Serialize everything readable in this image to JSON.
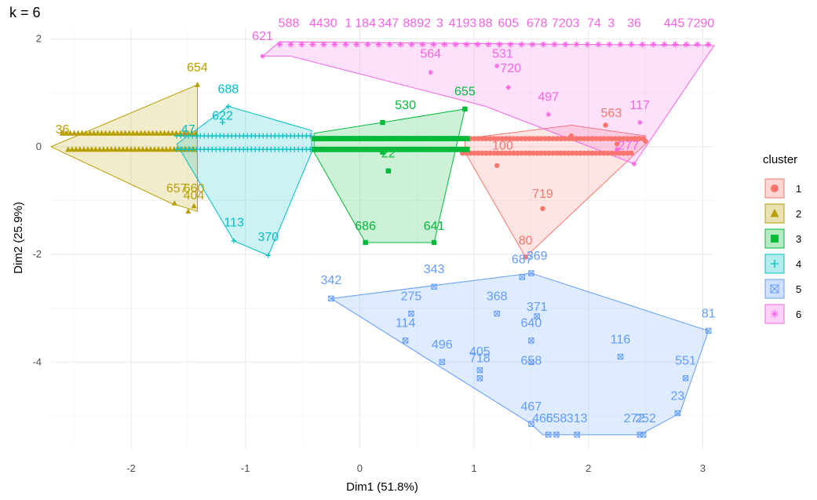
{
  "chart_data": {
    "type": "scatter",
    "title": "k = 6",
    "xlabel": "Dim1 (51.8%)",
    "ylabel": "Dim2 (25.9%)",
    "xlim": [
      -2.7,
      3.1
    ],
    "ylim": [
      -5.6,
      2.2
    ],
    "x_ticks": [
      -2,
      -1,
      0,
      1,
      2,
      3
    ],
    "y_ticks": [
      2,
      0,
      -2,
      -4
    ],
    "grid": true,
    "legend": {
      "title": "cluster",
      "position": "right"
    },
    "clusters": [
      {
        "name": "1",
        "color": "#f8766d",
        "shape": "circle",
        "hull": [
          [
            0.92,
            -0.1
          ],
          [
            1.45,
            -2.05
          ],
          [
            2.5,
            0.05
          ],
          [
            2.5,
            0.2
          ],
          [
            1.85,
            0.4
          ],
          [
            0.92,
            0.15
          ]
        ],
        "bands": [
          {
            "y": 0.15,
            "x0": 0.9,
            "x1": 2.5
          },
          {
            "y": -0.12,
            "x0": 0.9,
            "x1": 2.4
          }
        ],
        "points": [
          [
            1.2,
            -0.35
          ],
          [
            1.6,
            -1.15
          ],
          [
            1.45,
            -2.05
          ],
          [
            2.15,
            0.4
          ],
          [
            2.5,
            0.1
          ],
          [
            2.25,
            0.05
          ],
          [
            1.85,
            0.2
          ]
        ],
        "labels": [
          {
            "text": "563",
            "x": 2.2,
            "y": 0.55
          },
          {
            "text": "719",
            "x": 1.6,
            "y": -0.95
          },
          {
            "text": "80",
            "x": 1.45,
            "y": -1.82
          },
          {
            "text": "100",
            "x": 1.25,
            "y": -0.05
          }
        ]
      },
      {
        "name": "2",
        "color": "#b79f00",
        "shape": "triangle",
        "hull": [
          [
            -2.7,
            0.0
          ],
          [
            -1.42,
            1.15
          ],
          [
            -1.42,
            -1.2
          ],
          [
            -1.65,
            -1.05
          ]
        ],
        "bands": [
          {
            "y": 0.25,
            "x0": -2.6,
            "x1": -1.4
          },
          {
            "y": -0.05,
            "x0": -2.55,
            "x1": -1.42
          }
        ],
        "points": [
          [
            -1.42,
            1.15
          ],
          [
            -1.62,
            -1.05
          ],
          [
            -1.5,
            -1.2
          ],
          [
            -1.45,
            -1.1
          ]
        ],
        "labels": [
          {
            "text": "654",
            "x": -1.42,
            "y": 1.4
          },
          {
            "text": "657",
            "x": -1.6,
            "y": -0.85
          },
          {
            "text": "660",
            "x": -1.45,
            "y": -0.85
          },
          {
            "text": "404",
            "x": -1.45,
            "y": -0.98
          },
          {
            "text": "36",
            "x": -2.6,
            "y": 0.25
          }
        ]
      },
      {
        "name": "3",
        "color": "#00ba38",
        "shape": "square",
        "hull": [
          [
            -0.4,
            -0.1
          ],
          [
            0.05,
            -1.78
          ],
          [
            0.65,
            -1.78
          ],
          [
            0.92,
            0.7
          ],
          [
            0.2,
            0.45
          ],
          [
            -0.4,
            0.25
          ]
        ],
        "bands": [
          {
            "y": 0.15,
            "x0": -0.4,
            "x1": 0.95
          },
          {
            "y": -0.05,
            "x0": -0.4,
            "x1": 0.95
          }
        ],
        "points": [
          [
            0.2,
            0.45
          ],
          [
            0.92,
            0.7
          ],
          [
            0.05,
            -1.78
          ],
          [
            0.65,
            -1.78
          ],
          [
            0.25,
            -0.45
          ],
          [
            0.2,
            -0.1
          ]
        ],
        "labels": [
          {
            "text": "530",
            "x": 0.4,
            "y": 0.7
          },
          {
            "text": "655",
            "x": 0.92,
            "y": 0.95
          },
          {
            "text": "686",
            "x": 0.05,
            "y": -1.55
          },
          {
            "text": "641",
            "x": 0.65,
            "y": -1.55
          },
          {
            "text": "22",
            "x": 0.25,
            "y": -0.2
          }
        ]
      },
      {
        "name": "4",
        "color": "#00bfc4",
        "shape": "cross",
        "hull": [
          [
            -1.6,
            0.05
          ],
          [
            -1.15,
            0.75
          ],
          [
            -0.42,
            0.3
          ],
          [
            -0.42,
            -0.1
          ],
          [
            -0.8,
            -2.02
          ],
          [
            -1.1,
            -1.75
          ]
        ],
        "bands": [
          {
            "y": 0.2,
            "x0": -1.6,
            "x1": -0.42
          },
          {
            "y": -0.05,
            "x0": -1.6,
            "x1": -0.42
          }
        ],
        "points": [
          [
            -1.15,
            0.75
          ],
          [
            -1.1,
            -1.75
          ],
          [
            -0.8,
            -2.02
          ],
          [
            -1.2,
            0.45
          ]
        ],
        "labels": [
          {
            "text": "688",
            "x": -1.15,
            "y": 1.0
          },
          {
            "text": "622",
            "x": -1.2,
            "y": 0.5
          },
          {
            "text": "113",
            "x": -1.1,
            "y": -1.48
          },
          {
            "text": "370",
            "x": -0.8,
            "y": -1.75
          },
          {
            "text": "47",
            "x": -1.5,
            "y": 0.25
          }
        ]
      },
      {
        "name": "5",
        "color": "#619cff",
        "shape": "boxed-x",
        "hull": [
          [
            -0.25,
            -2.82
          ],
          [
            1.5,
            -2.35
          ],
          [
            3.05,
            -3.42
          ],
          [
            2.8,
            -4.95
          ],
          [
            2.45,
            -5.35
          ],
          [
            1.6,
            -5.35
          ],
          [
            1.5,
            -5.15
          ]
        ],
        "bands": [],
        "points": [
          [
            -0.25,
            -2.82
          ],
          [
            0.65,
            -2.6
          ],
          [
            0.45,
            -3.1
          ],
          [
            1.2,
            -3.1
          ],
          [
            0.4,
            -3.6
          ],
          [
            0.72,
            -4.0
          ],
          [
            1.05,
            -4.15
          ],
          [
            1.05,
            -4.3
          ],
          [
            1.5,
            -3.6
          ],
          [
            1.5,
            -4.0
          ],
          [
            1.55,
            -3.15
          ],
          [
            1.42,
            -2.42
          ],
          [
            1.5,
            -2.35
          ],
          [
            2.28,
            -3.9
          ],
          [
            3.05,
            -3.42
          ],
          [
            2.85,
            -4.3
          ],
          [
            2.78,
            -4.95
          ],
          [
            1.5,
            -5.15
          ],
          [
            1.65,
            -5.35
          ],
          [
            1.72,
            -5.35
          ],
          [
            1.9,
            -5.35
          ],
          [
            2.45,
            -5.35
          ],
          [
            2.48,
            -5.35
          ]
        ],
        "labels": [
          {
            "text": "342",
            "x": -0.25,
            "y": -2.55
          },
          {
            "text": "343",
            "x": 0.65,
            "y": -2.35
          },
          {
            "text": "275",
            "x": 0.45,
            "y": -2.85
          },
          {
            "text": "368",
            "x": 1.2,
            "y": -2.85
          },
          {
            "text": "687",
            "x": 1.42,
            "y": -2.17
          },
          {
            "text": "369",
            "x": 1.55,
            "y": -2.1
          },
          {
            "text": "371",
            "x": 1.55,
            "y": -3.05
          },
          {
            "text": "640",
            "x": 1.5,
            "y": -3.35
          },
          {
            "text": "114",
            "x": 0.4,
            "y": -3.35
          },
          {
            "text": "496",
            "x": 0.72,
            "y": -3.75
          },
          {
            "text": "405",
            "x": 1.05,
            "y": -3.88
          },
          {
            "text": "718",
            "x": 1.05,
            "y": -4.0
          },
          {
            "text": "658",
            "x": 1.5,
            "y": -4.05
          },
          {
            "text": "116",
            "x": 2.28,
            "y": -3.65
          },
          {
            "text": "81",
            "x": 3.05,
            "y": -3.17
          },
          {
            "text": "551",
            "x": 2.85,
            "y": -4.05
          },
          {
            "text": "23",
            "x": 2.78,
            "y": -4.7
          },
          {
            "text": "467",
            "x": 1.5,
            "y": -4.9
          },
          {
            "text": "465",
            "x": 1.6,
            "y": -5.12
          },
          {
            "text": "658",
            "x": 1.72,
            "y": -5.12
          },
          {
            "text": "313",
            "x": 1.9,
            "y": -5.12
          },
          {
            "text": "272",
            "x": 2.4,
            "y": -5.12
          },
          {
            "text": "252",
            "x": 2.5,
            "y": -5.12
          }
        ]
      },
      {
        "name": "6",
        "color": "#f564e3",
        "shape": "star",
        "hull": [
          [
            -0.85,
            1.68
          ],
          [
            -0.7,
            1.95
          ],
          [
            3.1,
            1.88
          ],
          [
            2.4,
            -0.32
          ],
          [
            1.1,
            0.75
          ],
          [
            -0.6,
            1.68
          ]
        ],
        "bands": [
          {
            "y": 1.9,
            "x0": -0.7,
            "x1": 3.1
          }
        ],
        "points": [
          [
            -0.85,
            1.68
          ],
          [
            0.62,
            1.38
          ],
          [
            1.2,
            1.5
          ],
          [
            1.3,
            1.1
          ],
          [
            1.65,
            0.6
          ],
          [
            2.45,
            0.45
          ],
          [
            2.4,
            -0.32
          ],
          [
            2.25,
            -0.05
          ]
        ],
        "labels": [
          {
            "text": "621",
            "x": -0.85,
            "y": 1.98
          },
          {
            "text": "564",
            "x": 0.62,
            "y": 1.65
          },
          {
            "text": "531",
            "x": 1.25,
            "y": 1.65
          },
          {
            "text": "720",
            "x": 1.32,
            "y": 1.38
          },
          {
            "text": "497",
            "x": 1.65,
            "y": 0.85
          },
          {
            "text": "117",
            "x": 2.45,
            "y": 0.7
          },
          {
            "text": "277",
            "x": 2.35,
            "y": -0.05
          },
          {
            "text": "588",
            "x": -0.62,
            "y": 2.22
          },
          {
            "text": "4430",
            "x": -0.32,
            "y": 2.22
          },
          {
            "text": "1",
            "x": -0.1,
            "y": 2.22
          },
          {
            "text": "184",
            "x": 0.05,
            "y": 2.22
          },
          {
            "text": "347",
            "x": 0.25,
            "y": 2.22
          },
          {
            "text": "8892",
            "x": 0.5,
            "y": 2.22
          },
          {
            "text": "3",
            "x": 0.7,
            "y": 2.22
          },
          {
            "text": "4193",
            "x": 0.9,
            "y": 2.22
          },
          {
            "text": "88",
            "x": 1.1,
            "y": 2.22
          },
          {
            "text": "605",
            "x": 1.3,
            "y": 2.22
          },
          {
            "text": "678",
            "x": 1.55,
            "y": 2.22
          },
          {
            "text": "7203",
            "x": 1.8,
            "y": 2.22
          },
          {
            "text": "74",
            "x": 2.05,
            "y": 2.22
          },
          {
            "text": "3",
            "x": 2.2,
            "y": 2.22
          },
          {
            "text": "36",
            "x": 2.4,
            "y": 2.22
          },
          {
            "text": "445",
            "x": 2.75,
            "y": 2.22
          },
          {
            "text": "7290",
            "x": 2.98,
            "y": 2.22
          }
        ]
      }
    ]
  }
}
